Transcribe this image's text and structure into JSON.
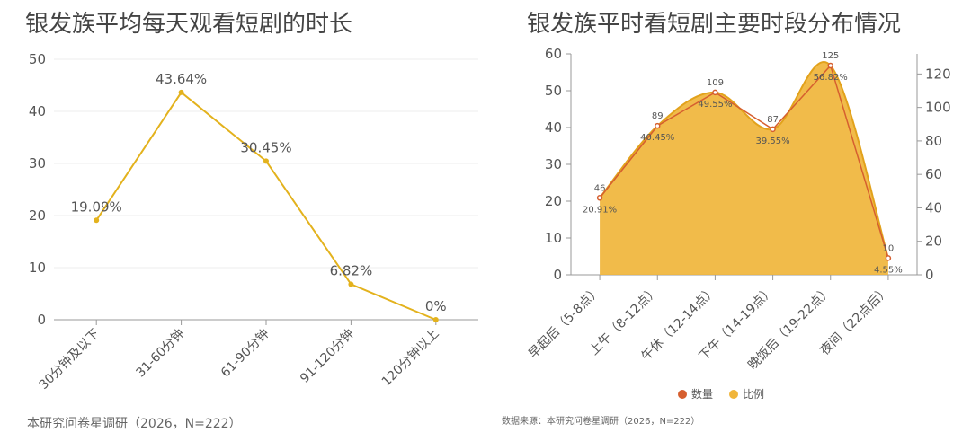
{
  "colors": {
    "line_left": "#E3B21D",
    "count_line": "#D65F2F",
    "ratio_area": "#F0B53B",
    "ratio_edge": "#E2A21C",
    "axis": "#999999",
    "grid": "#ececec"
  },
  "chart_data": [
    {
      "type": "line",
      "title": "银发族平均每天观看短剧的时长",
      "categories": [
        "30分钟及以下",
        "31-60分钟",
        "61-90分钟",
        "91-120分钟",
        "120分钟以上"
      ],
      "values": [
        19.09,
        43.64,
        30.45,
        6.82,
        0
      ],
      "data_labels": [
        "19.09%",
        "43.64%",
        "30.45%",
        "6.82%",
        "0%"
      ],
      "ylim": [
        0,
        50
      ],
      "yticks": [
        0,
        10,
        20,
        30,
        40,
        50
      ],
      "grid": true,
      "source": "本研究问卷星调研（2026，N=222）"
    },
    {
      "type": "area",
      "title": "银发族平时看短剧主要时段分布情况",
      "categories": [
        "早起后（5-8点）",
        "上午（8-12点）",
        "午休（12-14点）",
        "下午（14-19点）",
        "晚饭后（19-22点）",
        "夜间（22点后）"
      ],
      "series": [
        {
          "name": "数量",
          "type": "line",
          "axis": "right",
          "values": [
            46,
            89,
            109,
            87,
            125,
            10
          ],
          "labels": [
            "46",
            "89",
            "109",
            "87",
            "125",
            "10"
          ]
        },
        {
          "name": "比例",
          "type": "area",
          "axis": "left",
          "values": [
            20.91,
            40.45,
            49.55,
            39.55,
            56.82,
            4.55
          ],
          "labels": [
            "20.91%",
            "40.45%",
            "49.55%",
            "39.55%",
            "56.82%",
            "4.55%"
          ]
        }
      ],
      "ylim_left": [
        0,
        60
      ],
      "yticks_left": [
        0,
        10,
        20,
        30,
        40,
        50,
        60
      ],
      "ylim_right": [
        0,
        132
      ],
      "yticks_right": [
        0,
        20,
        40,
        60,
        80,
        100,
        120
      ],
      "grid": false,
      "legend": "bottom-center",
      "source": "数据来源：本研究问卷星调研（2026，N=222）"
    }
  ]
}
